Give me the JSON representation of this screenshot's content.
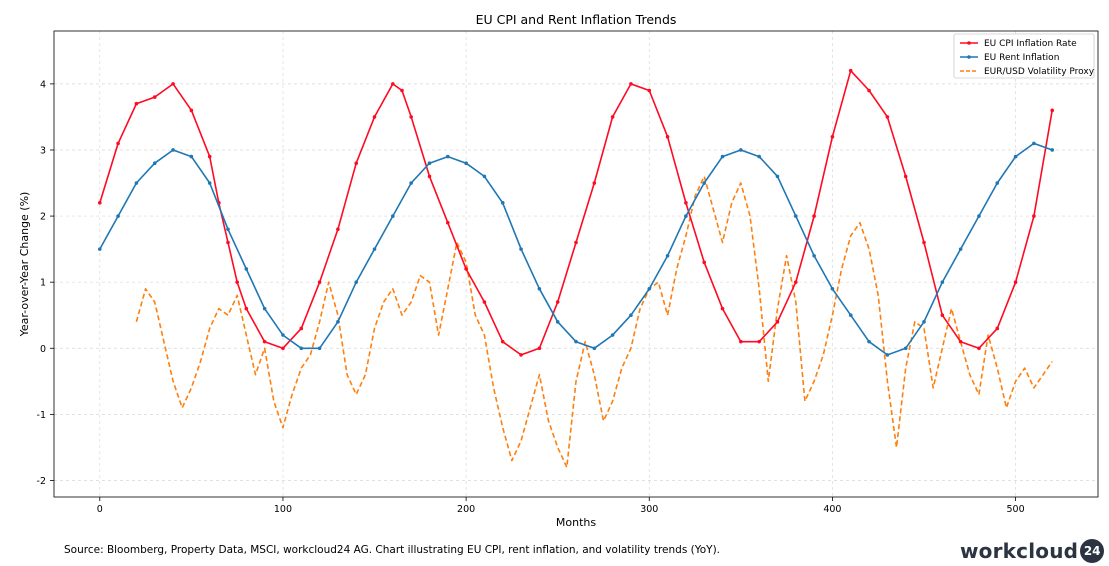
{
  "chart_data": {
    "type": "line",
    "title": "EU CPI and Rent Inflation Trends",
    "xlabel": "Months",
    "ylabel": "Year-over-Year Change (%)",
    "xlim": [
      -25,
      545
    ],
    "ylim": [
      -2.25,
      4.8
    ],
    "xticks": [
      0,
      100,
      200,
      300,
      400,
      500
    ],
    "yticks": [
      -2,
      -1,
      0,
      1,
      2,
      3,
      4
    ],
    "grid": true,
    "legend_position": "top-right",
    "series": [
      {
        "name": "EU CPI Inflation Rate",
        "color": "#ff0a22",
        "style": "solid-marker",
        "x": [
          0,
          10,
          20,
          30,
          40,
          50,
          60,
          65,
          70,
          75,
          80,
          90,
          100,
          110,
          120,
          130,
          140,
          150,
          160,
          165,
          170,
          180,
          190,
          200,
          210,
          220,
          230,
          240,
          250,
          260,
          270,
          280,
          290,
          300,
          310,
          320,
          330,
          340,
          350,
          360,
          370,
          380,
          390,
          400,
          410,
          420,
          430,
          440,
          450,
          460,
          470,
          480,
          490,
          500,
          510,
          520
        ],
        "values": [
          2.2,
          3.1,
          3.7,
          3.8,
          4.0,
          3.6,
          2.9,
          2.2,
          1.6,
          1.0,
          0.6,
          0.1,
          0.0,
          0.3,
          1.0,
          1.8,
          2.8,
          3.5,
          4.0,
          3.9,
          3.5,
          2.6,
          1.9,
          1.2,
          0.7,
          0.1,
          -0.1,
          0.0,
          0.7,
          1.6,
          2.5,
          3.5,
          4.0,
          3.9,
          3.2,
          2.2,
          1.3,
          0.6,
          0.1,
          0.1,
          0.4,
          1.0,
          2.0,
          3.2,
          4.2,
          3.9,
          3.5,
          2.6,
          1.6,
          0.5,
          0.1,
          0.0,
          0.3,
          1.0,
          2.0,
          3.6
        ]
      },
      {
        "name": "EU Rent Inflation",
        "color": "#1f77b4",
        "style": "solid-marker",
        "x": [
          0,
          10,
          20,
          30,
          40,
          50,
          60,
          70,
          80,
          90,
          100,
          110,
          120,
          130,
          140,
          150,
          160,
          170,
          180,
          190,
          200,
          210,
          220,
          230,
          240,
          250,
          260,
          270,
          280,
          290,
          300,
          310,
          320,
          330,
          340,
          350,
          360,
          370,
          380,
          390,
          400,
          410,
          420,
          430,
          440,
          450,
          460,
          470,
          480,
          490,
          500,
          510,
          520
        ],
        "values": [
          1.5,
          2.0,
          2.5,
          2.8,
          3.0,
          2.9,
          2.5,
          1.8,
          1.2,
          0.6,
          0.2,
          0.0,
          0.0,
          0.4,
          1.0,
          1.5,
          2.0,
          2.5,
          2.8,
          2.9,
          2.8,
          2.6,
          2.2,
          1.5,
          0.9,
          0.4,
          0.1,
          0.0,
          0.2,
          0.5,
          0.9,
          1.4,
          2.0,
          2.5,
          2.9,
          3.0,
          2.9,
          2.6,
          2.0,
          1.4,
          0.9,
          0.5,
          0.1,
          -0.1,
          0.0,
          0.4,
          1.0,
          1.5,
          2.0,
          2.5,
          2.9,
          3.1,
          3.0
        ]
      },
      {
        "name": "EUR/USD Volatility Proxy",
        "color": "#ff7f0e",
        "style": "dashed",
        "x": [
          20,
          25,
          30,
          35,
          40,
          45,
          50,
          55,
          60,
          65,
          70,
          75,
          80,
          85,
          90,
          95,
          100,
          105,
          110,
          115,
          120,
          125,
          130,
          135,
          140,
          145,
          150,
          155,
          160,
          165,
          170,
          175,
          180,
          185,
          190,
          195,
          200,
          205,
          210,
          215,
          220,
          225,
          230,
          235,
          240,
          245,
          250,
          255,
          260,
          265,
          270,
          275,
          280,
          285,
          290,
          295,
          300,
          305,
          310,
          315,
          320,
          325,
          330,
          335,
          340,
          345,
          350,
          355,
          360,
          365,
          370,
          375,
          380,
          385,
          390,
          395,
          400,
          405,
          410,
          415,
          420,
          425,
          430,
          435,
          440,
          445,
          450,
          455,
          460,
          465,
          470,
          475,
          480,
          485,
          490,
          495,
          500,
          505,
          510,
          515,
          520
        ],
        "values": [
          0.4,
          0.9,
          0.7,
          0.1,
          -0.5,
          -0.9,
          -0.6,
          -0.2,
          0.3,
          0.6,
          0.5,
          0.8,
          0.2,
          -0.4,
          0.0,
          -0.8,
          -1.2,
          -0.7,
          -0.3,
          -0.1,
          0.4,
          1.0,
          0.5,
          -0.4,
          -0.7,
          -0.4,
          0.3,
          0.7,
          0.9,
          0.5,
          0.7,
          1.1,
          1.0,
          0.2,
          0.9,
          1.6,
          1.3,
          0.5,
          0.2,
          -0.6,
          -1.2,
          -1.7,
          -1.4,
          -0.9,
          -0.4,
          -1.1,
          -1.5,
          -1.8,
          -0.5,
          0.1,
          -0.4,
          -1.1,
          -0.8,
          -0.3,
          0.0,
          0.6,
          0.9,
          1.0,
          0.5,
          1.2,
          1.7,
          2.3,
          2.6,
          2.1,
          1.6,
          2.2,
          2.5,
          2.0,
          0.9,
          -0.5,
          0.6,
          1.4,
          0.7,
          -0.8,
          -0.5,
          -0.1,
          0.5,
          1.2,
          1.7,
          1.9,
          1.5,
          0.8,
          -0.5,
          -1.5,
          -0.3,
          0.4,
          0.3,
          -0.6,
          0.0,
          0.6,
          0.1,
          -0.4,
          -0.7,
          0.2,
          -0.3,
          -0.9,
          -0.5,
          -0.3,
          -0.6,
          -0.4,
          -0.2
        ]
      }
    ]
  },
  "footer": {
    "source_text": "Source: Bloomberg, Property Data, MSCI, workcloud24 AG. Chart illustrating EU CPI, rent inflation, and volatility trends (YoY)."
  },
  "logo": {
    "word": "workcloud",
    "badge": "24"
  }
}
